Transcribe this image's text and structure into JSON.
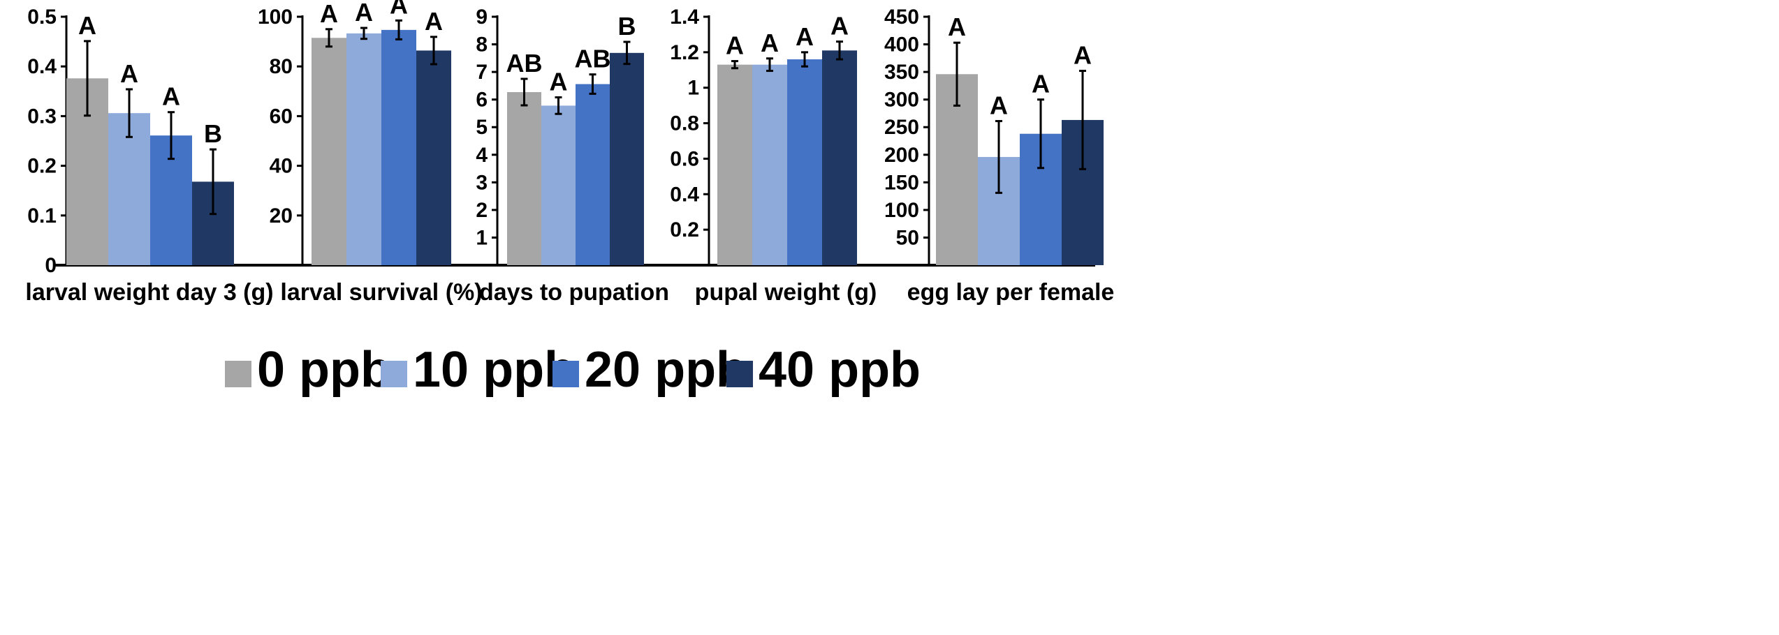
{
  "chart_data": {
    "type": "bar",
    "series": [
      {
        "name": "0 ppb",
        "color": "#a6a6a6"
      },
      {
        "name": "10 ppb",
        "color": "#8eaadb"
      },
      {
        "name": "20 ppb",
        "color": "#4472c4"
      },
      {
        "name": "40 ppb",
        "color": "#203864"
      }
    ],
    "legend_position": "bottom",
    "panels": [
      {
        "xlabel": "larval weight day 3 (g)",
        "ylim": [
          0,
          0.5
        ],
        "yticks": [
          0,
          0.1,
          0.2,
          0.3,
          0.4,
          0.5
        ],
        "ytick_labels": [
          "0",
          "0.1",
          "0.2",
          "0.3",
          "0.4",
          "0.5"
        ],
        "values": [
          0.376,
          0.306,
          0.261,
          0.168
        ],
        "errors": [
          0.075,
          0.048,
          0.047,
          0.065
        ],
        "letters": [
          "A",
          "A",
          "A",
          "B"
        ]
      },
      {
        "xlabel": "larval survival (%)",
        "ylim": [
          0,
          100
        ],
        "yticks": [
          20,
          40,
          60,
          80,
          100
        ],
        "ytick_labels": [
          "20",
          "40",
          "60",
          "80",
          "100"
        ],
        "values": [
          91.5,
          93.3,
          94.7,
          86.4
        ],
        "errors": [
          3.5,
          2.2,
          3.8,
          5.5
        ],
        "letters": [
          "A",
          "A",
          "A",
          "A"
        ]
      },
      {
        "xlabel": "days to pupation",
        "ylim": [
          0,
          9
        ],
        "yticks": [
          1,
          2,
          3,
          4,
          5,
          6,
          7,
          8,
          9
        ],
        "ytick_labels": [
          "1",
          "2",
          "3",
          "4",
          "5",
          "6",
          "7",
          "8",
          "9"
        ],
        "values": [
          6.27,
          5.78,
          6.56,
          7.69
        ],
        "errors": [
          0.48,
          0.3,
          0.35,
          0.4
        ],
        "letters": [
          "AB",
          "A",
          "AB",
          "B"
        ]
      },
      {
        "xlabel": "pupal weight (g)",
        "ylim": [
          0,
          1.4
        ],
        "yticks": [
          0.2,
          0.4,
          0.6,
          0.8,
          1.0,
          1.2,
          1.4
        ],
        "ytick_labels": [
          "0.2",
          "0.4",
          "0.6",
          "0.8",
          "1",
          "1.2",
          "1.4"
        ],
        "values": [
          1.13,
          1.13,
          1.16,
          1.21
        ],
        "errors": [
          0.02,
          0.035,
          0.04,
          0.05
        ],
        "letters": [
          "A",
          "A",
          "A",
          "A"
        ]
      },
      {
        "xlabel": "egg lay per female",
        "ylim": [
          0,
          450
        ],
        "yticks": [
          50,
          100,
          150,
          200,
          250,
          300,
          350,
          400,
          450
        ],
        "ytick_labels": [
          "50",
          "100",
          "150",
          "200",
          "250",
          "300",
          "350",
          "400",
          "450"
        ],
        "values": [
          346,
          196,
          238,
          263
        ],
        "errors": [
          57,
          65,
          62,
          89
        ],
        "letters": [
          "A",
          "A",
          "A",
          "A"
        ]
      }
    ]
  }
}
